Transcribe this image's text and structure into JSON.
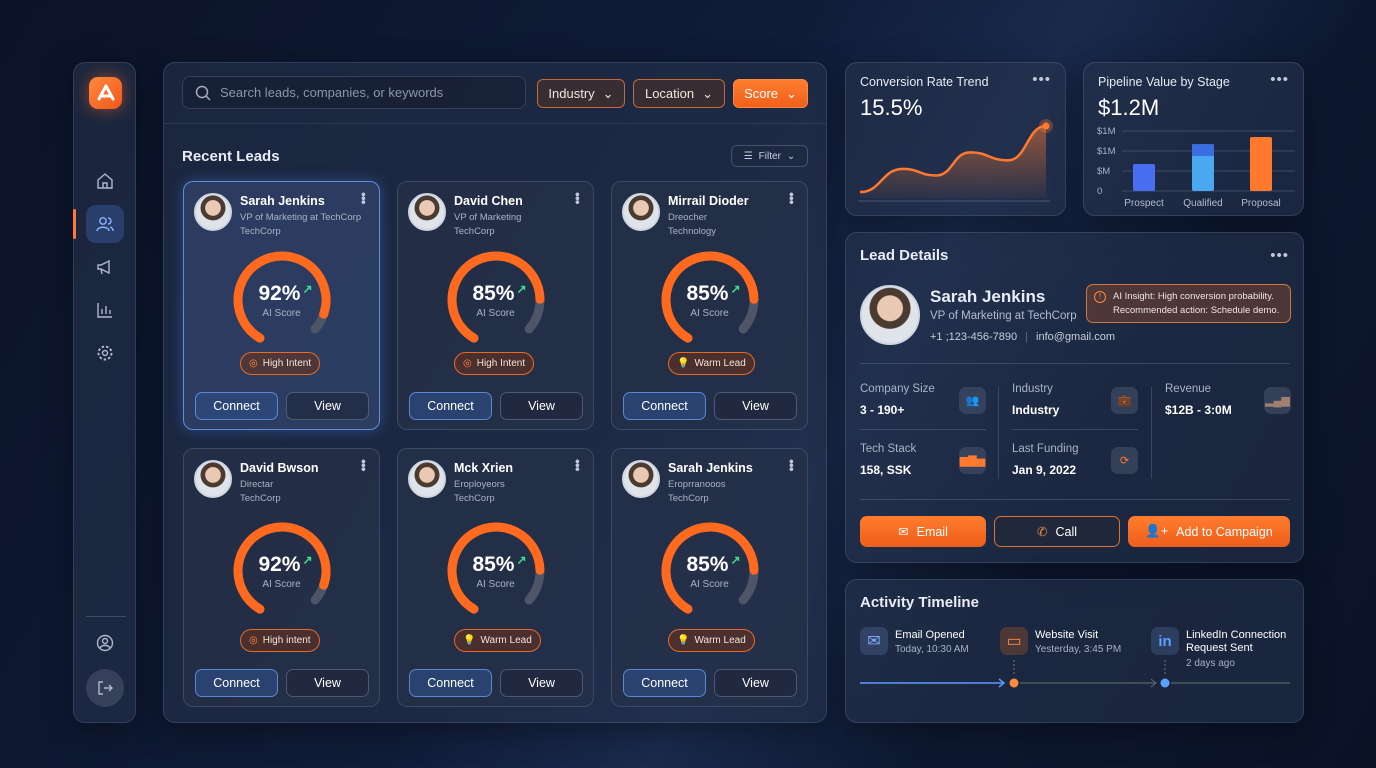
{
  "sidebar": {
    "items": [
      {
        "icon": "home-icon"
      },
      {
        "icon": "users-icon",
        "active": true
      },
      {
        "icon": "megaphone-icon"
      },
      {
        "icon": "bar-chart-icon"
      },
      {
        "icon": "gear-icon"
      }
    ],
    "bottom": [
      {
        "icon": "user-circle-icon"
      },
      {
        "icon": "logout-icon"
      }
    ]
  },
  "search": {
    "placeholder": "Search leads, companies, or keywords"
  },
  "filters": [
    {
      "label": "Industry"
    },
    {
      "label": "Location"
    },
    {
      "label": "Score",
      "active": true
    }
  ],
  "leads": {
    "title": "Recent Leads",
    "filter_label": "Filter",
    "cards": [
      {
        "name": "Sarah Jenkins",
        "role": "VP of Marketing at TechCorp",
        "company": "TechCorp",
        "score": 92,
        "score_text": "92%",
        "score_label": "AI Score",
        "badge": "High Intent",
        "badge_icon": "target-icon",
        "selected": true
      },
      {
        "name": "David Chen",
        "role": "VP of Marketing",
        "company": "TechCorp",
        "score": 85,
        "score_text": "85%",
        "score_label": "AI Score",
        "badge": "High Intent",
        "badge_icon": "target-icon"
      },
      {
        "name": "Mirrail Dioder",
        "role": "Dreocher",
        "company": "Technology",
        "score": 85,
        "score_text": "85%",
        "score_label": "AI Score",
        "badge": "Warm Lead",
        "badge_icon": "lightbulb-icon"
      },
      {
        "name": "David Bwson",
        "role": "Directar",
        "company": "TechCorp",
        "score": 92,
        "score_text": "92%",
        "score_label": "AI Score",
        "badge": "High intent",
        "badge_icon": "target-icon"
      },
      {
        "name": "Mck Xrien",
        "role": "Eroployeors",
        "company": "TechCorp",
        "score": 85,
        "score_text": "85%",
        "score_label": "AI Score",
        "badge": "Warm Lead",
        "badge_icon": "lightbulb-icon"
      },
      {
        "name": "Sarah Jenkins",
        "role": "Eroprranooos",
        "company": "TechCorp",
        "score": 85,
        "score_text": "85%",
        "score_label": "AI Score",
        "badge": "Warm Lead",
        "badge_icon": "lightbulb-icon"
      }
    ],
    "connect_label": "Connect",
    "view_label": "View"
  },
  "conversion": {
    "title": "Conversion Rate Trend",
    "value": "15.5%"
  },
  "pipeline": {
    "title": "Pipeline Value by Stage",
    "value": "$1.2M"
  },
  "chart_data": [
    {
      "type": "area",
      "title": "Conversion Rate Trend",
      "values": [
        0,
        0.35,
        0.25,
        0.6,
        0.48,
        1.0
      ],
      "color": "#ff7a2e",
      "grid": false
    },
    {
      "type": "bar",
      "title": "Pipeline Value by Stage",
      "categories": [
        "Prospect",
        "Qualified",
        "Proposal"
      ],
      "yticks": [
        "0",
        "$M",
        "$1M",
        "$1M"
      ],
      "values": [
        0.45,
        0.78,
        0.9
      ],
      "ylim": [
        0,
        1.2
      ],
      "colors": [
        "#4a6ef0",
        "#4aa8f0",
        "#ff7a2e"
      ],
      "grid": true
    }
  ],
  "lead_details": {
    "title": "Lead Details",
    "name": "Sarah Jenkins",
    "role": "VP of Marketing at TechCorp",
    "phone": "+1 ;123-456-7890",
    "email": "info@gmail.com",
    "insight": {
      "line1": "AI Insight: High conversion probability.",
      "line2": "Recommended action: Schedule demo."
    },
    "fields": [
      {
        "label": "Company Size",
        "value": "3 - 190+",
        "icon": "users-icon"
      },
      {
        "label": "Industry",
        "value": "Industry",
        "icon": "briefcase-icon"
      },
      {
        "label": "Revenue",
        "value": "$12B - 3:0M",
        "icon": "signal-icon"
      },
      {
        "label": "Tech Stack",
        "value": "158, SSK",
        "icon": "bar-chart-icon"
      },
      {
        "label": "Last Funding",
        "value": "Jan 9, 2022",
        "icon": "funding-icon"
      }
    ],
    "actions": {
      "email": "Email",
      "call": "Call",
      "campaign": "Add to Campaign"
    }
  },
  "timeline": {
    "title": "Activity Timeline",
    "events": [
      {
        "title": "Email Opened",
        "time": "Today, 10:30 AM",
        "icon": "mail-icon"
      },
      {
        "title": "Website Visit",
        "time": "Yesterday, 3:45 PM",
        "icon": "browser-icon"
      },
      {
        "title": "LinkedIn Connection",
        "title2": "Request Sent",
        "time": "2 days ago",
        "icon": "linkedin-icon"
      }
    ]
  },
  "colors": {
    "accent": "#ff7a2e",
    "blue": "#5b8dde",
    "positive": "#3ee08a"
  }
}
